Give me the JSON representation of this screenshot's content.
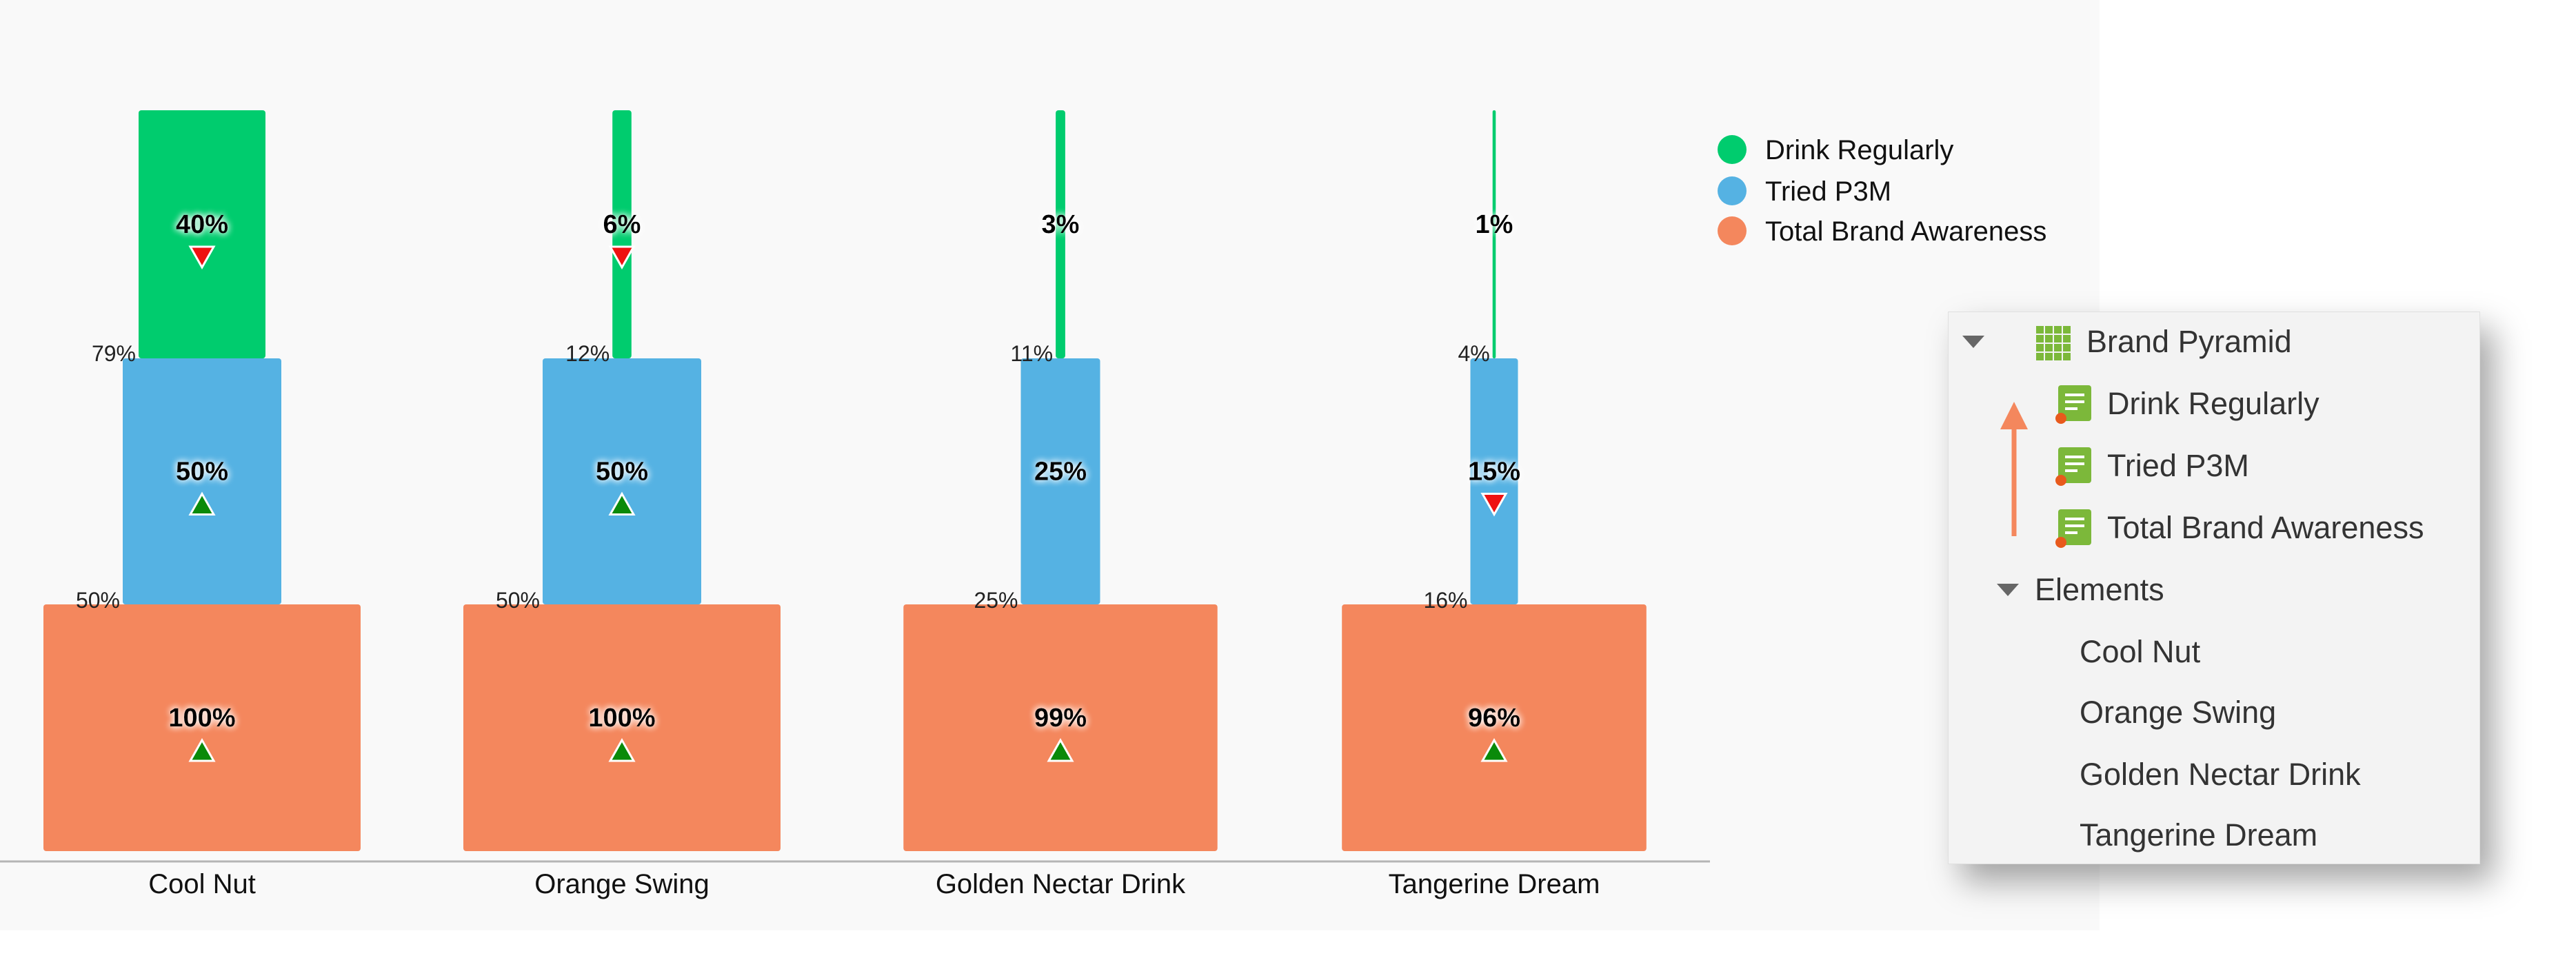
{
  "chart_data": {
    "type": "bar",
    "title": "",
    "categories": [
      "Cool Nut",
      "Orange Swing",
      "Golden Nectar Drink",
      "Tangerine Dream"
    ],
    "series": [
      {
        "name": "Total Brand Awareness",
        "values": [
          100,
          100,
          99,
          96
        ],
        "labels": [
          "100%",
          "100%",
          "99%",
          "96%"
        ],
        "trend": [
          "up",
          "up",
          "up",
          "up"
        ]
      },
      {
        "name": "Tried P3M",
        "values": [
          50,
          50,
          25,
          15
        ],
        "labels": [
          "50%",
          "50%",
          "25%",
          "15%"
        ],
        "trend": [
          "up",
          "up",
          "none",
          "down"
        ]
      },
      {
        "name": "Drink Regularly",
        "values": [
          40,
          6,
          3,
          1
        ],
        "labels": [
          "40%",
          "6%",
          "3%",
          "1%"
        ],
        "trend": [
          "down",
          "down",
          "none",
          "none"
        ]
      }
    ],
    "conversion_labels": {
      "total_to_tried": [
        "50%",
        "50%",
        "25%",
        "16%"
      ],
      "tried_to_regular": [
        "79%",
        "12%",
        "11%",
        "4%"
      ]
    },
    "legend": {
      "position": "top-right",
      "items": [
        {
          "name": "Drink Regularly",
          "color": "#00cc6e"
        },
        {
          "name": "Tried P3M",
          "color": "#55b2e3"
        },
        {
          "name": "Total Brand Awareness",
          "color": "#f4875d"
        }
      ]
    },
    "colors": {
      "Drink Regularly": "#00cc6e",
      "Tried P3M": "#55b2e3",
      "Total Brand Awareness": "#f4875d",
      "up": "#0a8a0a",
      "down": "#ee1111"
    },
    "grid": false
  },
  "tree": {
    "root": {
      "label": "Brand Pyramid",
      "icon": "grid-icon"
    },
    "items": [
      {
        "label": "Drink Regularly",
        "icon": "doc-icon"
      },
      {
        "label": "Tried P3M",
        "icon": "doc-icon"
      },
      {
        "label": "Total Brand Awareness",
        "icon": "doc-icon"
      }
    ],
    "elements": {
      "label": "Elements",
      "children": [
        {
          "label": "Cool Nut"
        },
        {
          "label": "Orange Swing"
        },
        {
          "label": "Golden Nectar Drink"
        },
        {
          "label": "Tangerine Dream"
        }
      ]
    },
    "arrow_color": "#f4875d"
  }
}
